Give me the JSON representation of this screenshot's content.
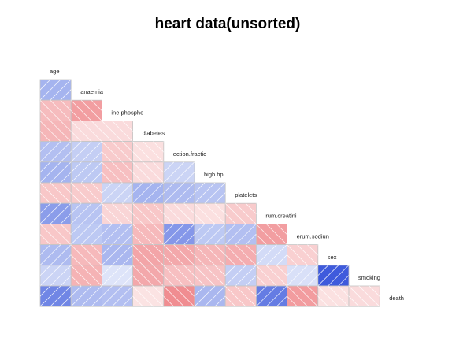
{
  "chart_data": {
    "type": "heatmap",
    "title": "heart data(unsorted)",
    "variables": [
      "age",
      "anaemia",
      "ine.phospho",
      "diabetes",
      "ection.fractic",
      "high.bp",
      "platelets",
      "rum.creatini",
      "erum.sodiun",
      "sex",
      "smoking",
      "death"
    ],
    "correlations": [
      [],
      [
        0.09
      ],
      [
        -0.08,
        -0.19
      ],
      [
        -0.1,
        -0.01,
        -0.01
      ],
      [
        0.06,
        0.03,
        -0.04,
        -0.005
      ],
      [
        0.09,
        0.04,
        -0.07,
        -0.01,
        0.02
      ],
      [
        -0.05,
        -0.04,
        0.02,
        0.09,
        0.07,
        0.05
      ],
      [
        0.16,
        0.05,
        -0.02,
        -0.05,
        -0.01,
        -0.005,
        -0.04
      ],
      [
        -0.05,
        0.04,
        0.06,
        -0.09,
        0.18,
        0.04,
        0.06,
        -0.19
      ],
      [
        0.07,
        -0.09,
        0.08,
        -0.16,
        -0.15,
        -0.1,
        -0.13,
        0.01,
        -0.03
      ],
      [
        0.02,
        -0.11,
        0.002,
        -0.15,
        -0.07,
        -0.06,
        0.03,
        -0.03,
        0.005,
        0.45
      ],
      [
        0.25,
        0.07,
        0.06,
        -0.002,
        -0.27,
        0.08,
        -0.05,
        0.29,
        -0.2,
        -0.004,
        -0.01
      ]
    ],
    "color_scale": {
      "negative": "#e8545a",
      "positive": "#1f3fd6"
    },
    "shading_lines": true,
    "layout": "lower-triangle",
    "labels_on_diagonal": true
  }
}
